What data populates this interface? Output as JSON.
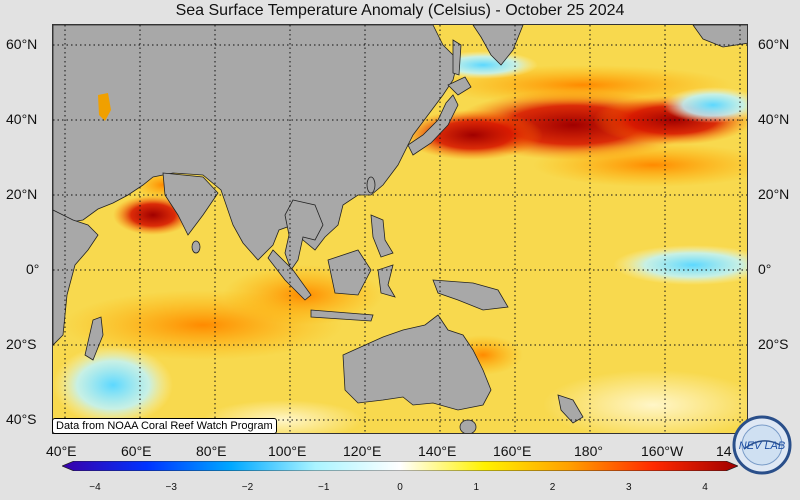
{
  "title": "Sea Surface Temperature Anomaly (Celsius) - October 25 2024",
  "credit": "Data from NOAA Coral Reef Watch Program",
  "lat_labels": [
    "60°N",
    "40°N",
    "20°N",
    "0°",
    "20°S",
    "40°S"
  ],
  "lon_labels": [
    "40°E",
    "60°E",
    "80°E",
    "100°E",
    "120°E",
    "140°E",
    "160°E",
    "180°",
    "160°W",
    "14"
  ],
  "colorbar": {
    "ticks": [
      "−4",
      "−3",
      "−2",
      "−1",
      "0",
      "1",
      "2",
      "3",
      "4"
    ],
    "min": -4,
    "max": 4,
    "colors": [
      "#3a00a8",
      "#0033ff",
      "#00a8ff",
      "#aaf4ff",
      "#ffffff",
      "#fff200",
      "#ffa000",
      "#ff2a00",
      "#a00000"
    ]
  },
  "logo_text": "NEV LAB",
  "colors": {
    "land": "#a8a8a8",
    "ocean_base": "#f6d34a",
    "hot": "#b00000",
    "cool": "#9eeaff"
  }
}
